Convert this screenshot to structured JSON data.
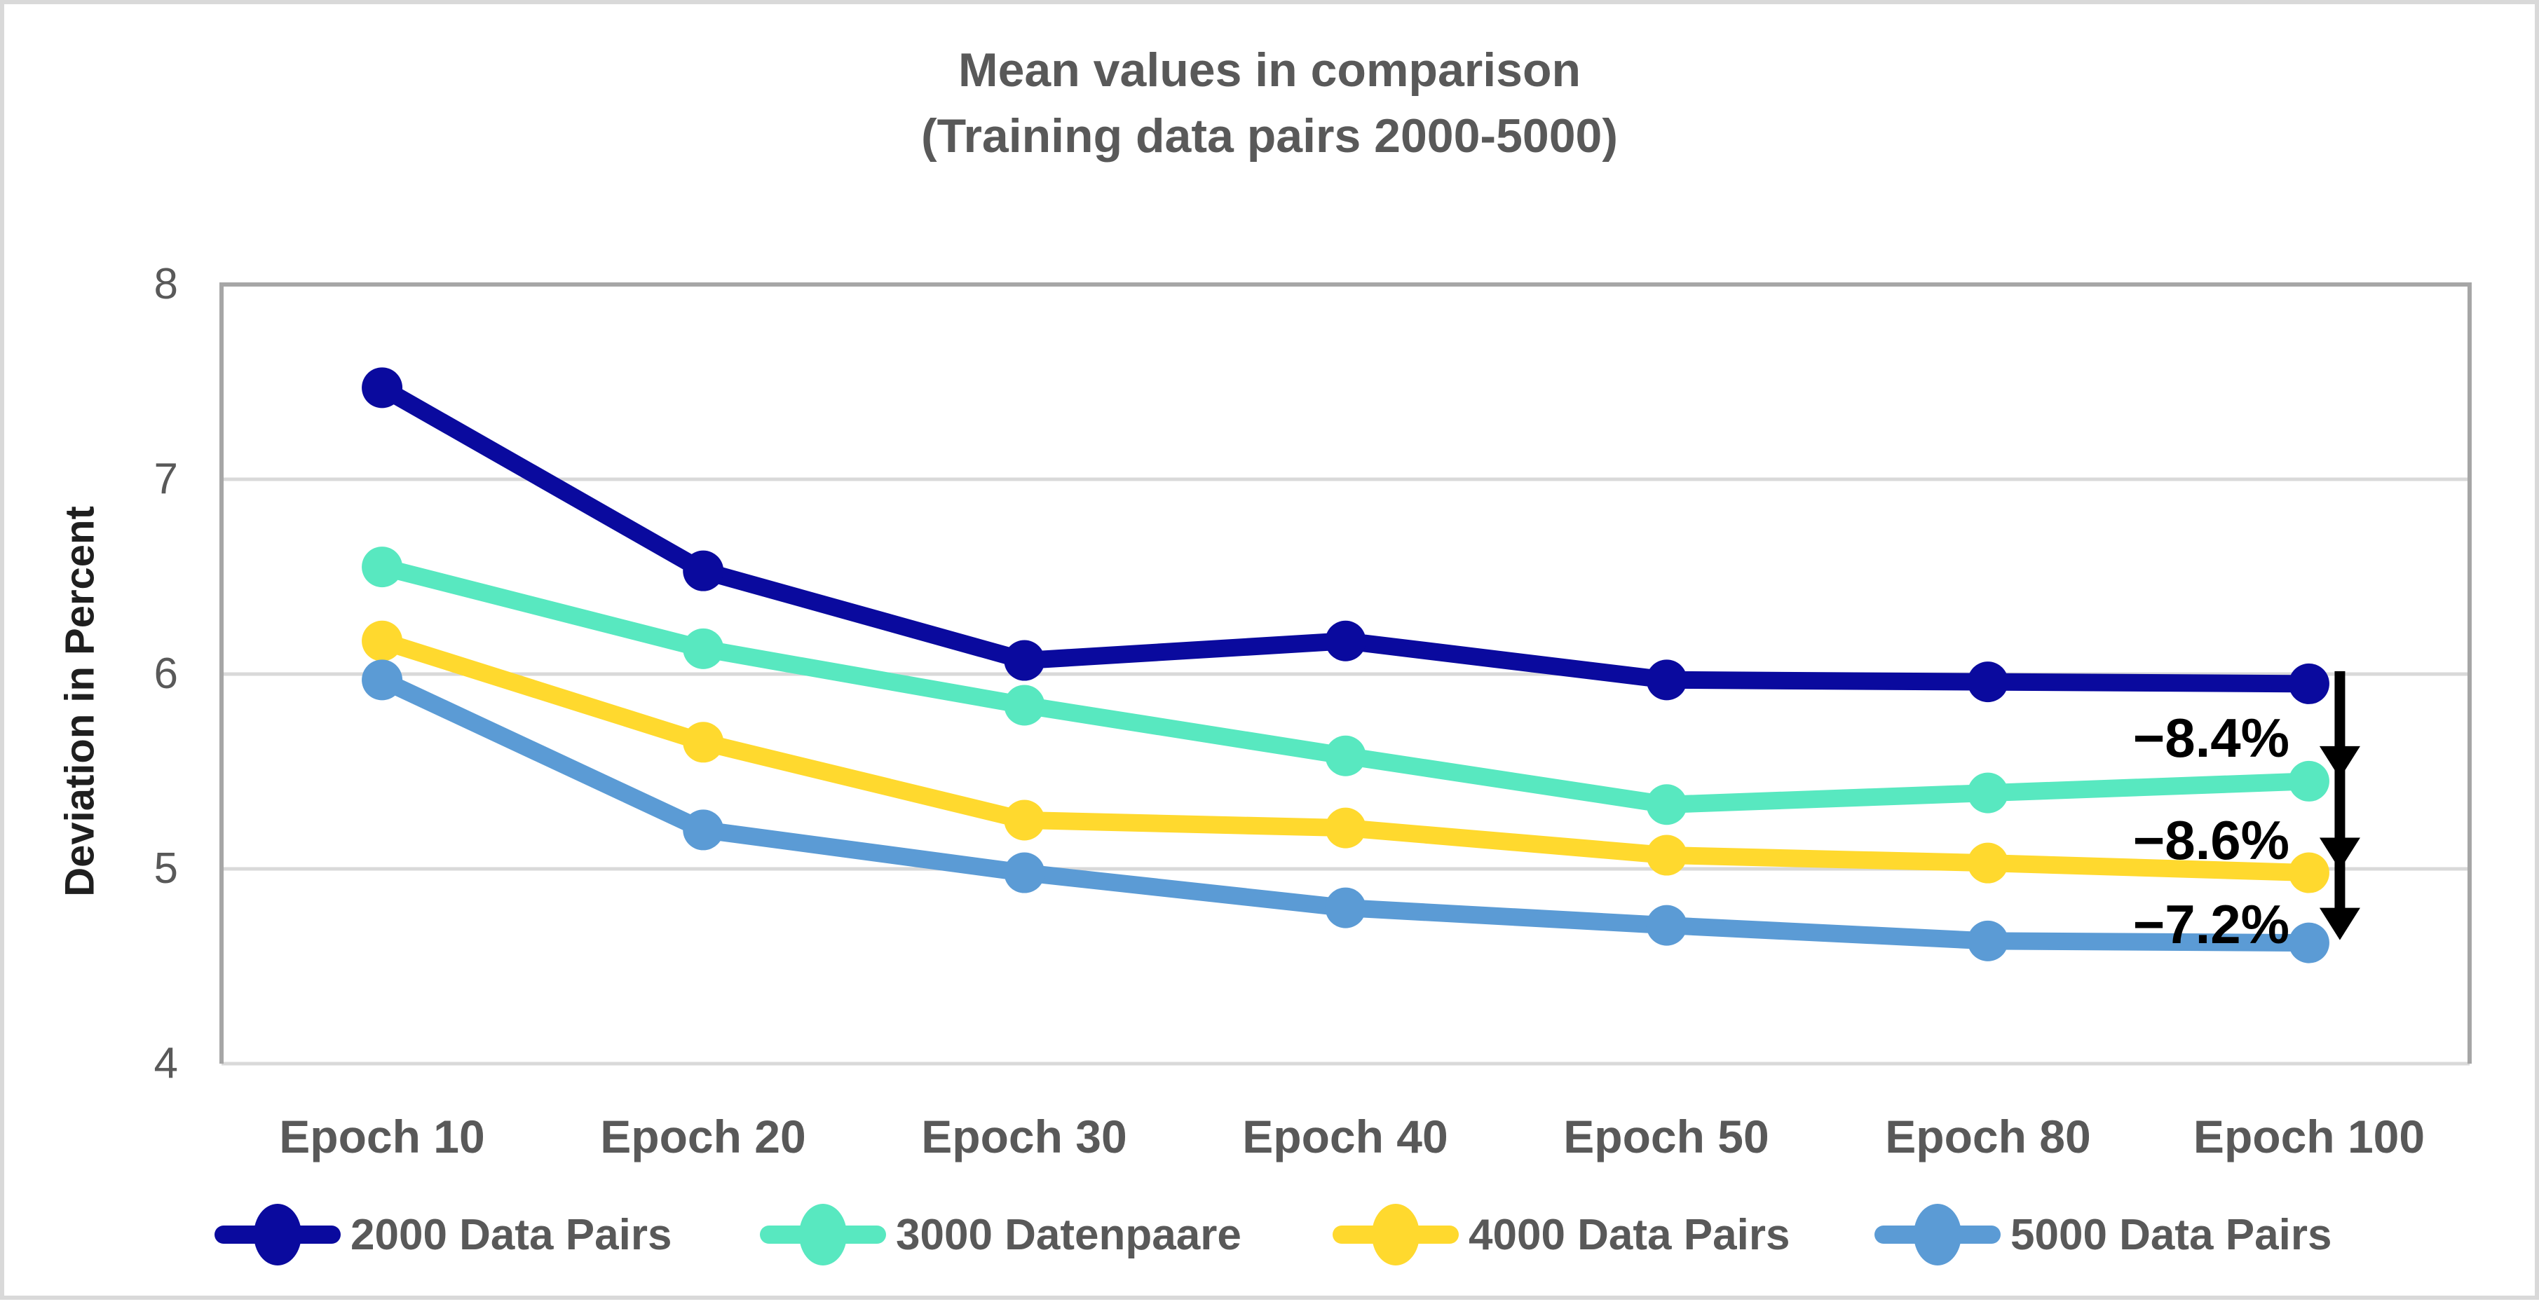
{
  "figure": {
    "title_line1": "Mean values in comparison",
    "title_line2": "(Training data pairs 2000-5000)"
  },
  "colors": {
    "series_2000": "#0A0A9E",
    "series_3000": "#58E8C0",
    "series_4000": "#FFD92E",
    "series_5000": "#5B9BD5",
    "gridline": "#D9D9D9",
    "plot_border": "#A6A6A6",
    "text_gray": "#595959",
    "annotation_black": "#000000"
  },
  "chart_data": {
    "type": "line",
    "title": "Mean values in comparison (Training data pairs 2000-5000)",
    "xlabel": "",
    "ylabel": "Deviation in Percent",
    "ylim": [
      4,
      8
    ],
    "yticks": [
      8,
      7,
      6,
      5,
      4
    ],
    "grid": true,
    "legend_position": "bottom",
    "categories": [
      "Epoch 10",
      "Epoch 20",
      "Epoch 30",
      "Epoch 40",
      "Epoch 50",
      "Epoch 80",
      "Epoch 100"
    ],
    "series": [
      {
        "name": "2000 Data Pairs",
        "color": "#0A0A9E",
        "values": [
          7.47,
          6.53,
          6.07,
          6.17,
          5.97,
          5.96,
          5.95
        ]
      },
      {
        "name": "3000 Datenpaare",
        "color": "#58E8C0",
        "values": [
          6.55,
          6.13,
          5.84,
          5.58,
          5.33,
          5.39,
          5.45
        ]
      },
      {
        "name": "4000 Data Pairs",
        "color": "#FFD92E",
        "values": [
          6.17,
          5.65,
          5.25,
          5.21,
          5.07,
          5.03,
          4.98
        ]
      },
      {
        "name": "5000 Data Pairs",
        "color": "#5B9BD5",
        "values": [
          5.97,
          5.2,
          4.98,
          4.8,
          4.71,
          4.63,
          4.62
        ]
      }
    ],
    "annotations": [
      {
        "label": "−8.4%",
        "between": [
          "2000 Data Pairs",
          "3000 Datenpaare"
        ],
        "at_category": "Epoch 100"
      },
      {
        "label": "−8.6%",
        "between": [
          "3000 Datenpaare",
          "4000 Data Pairs"
        ],
        "at_category": "Epoch 100"
      },
      {
        "label": "−7.2%",
        "between": [
          "4000 Data Pairs",
          "5000 Data Pairs"
        ],
        "at_category": "Epoch 100"
      }
    ]
  }
}
